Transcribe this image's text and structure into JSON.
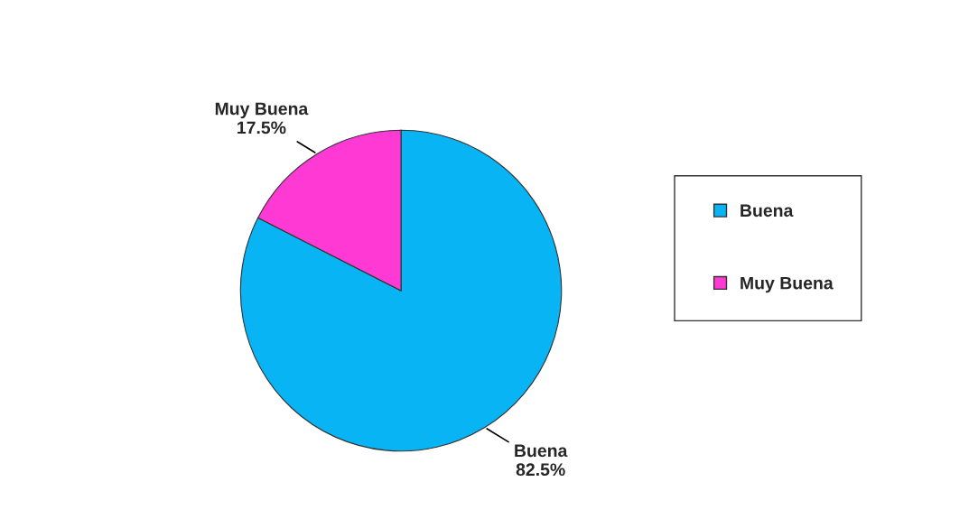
{
  "chart_data": {
    "type": "pie",
    "categories": [
      "Buena",
      "Muy Buena"
    ],
    "values": [
      82.5,
      17.5
    ],
    "colors": [
      "#08b4f4",
      "#ff3ad4"
    ],
    "value_labels": [
      "82.5%",
      "17.5%"
    ],
    "legend": "right"
  }
}
